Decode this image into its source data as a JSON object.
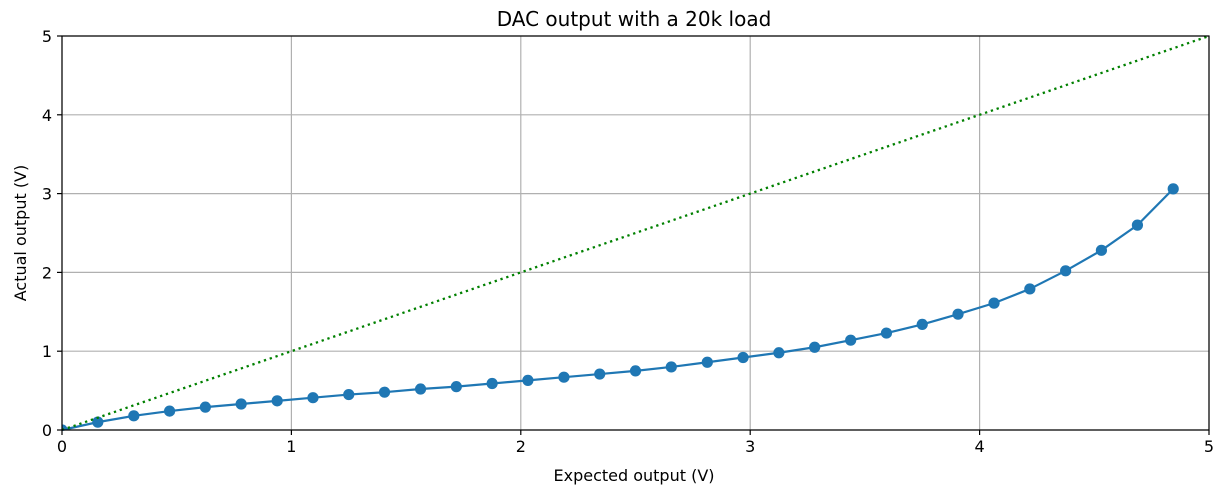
{
  "chart_data": {
    "type": "line",
    "title": "DAC output with a 20k load",
    "xlabel": "Expected output (V)",
    "ylabel": "Actual output (V)",
    "xlim": [
      0,
      5
    ],
    "ylim": [
      0,
      5
    ],
    "xticks": [
      "0",
      "1",
      "2",
      "3",
      "4",
      "5"
    ],
    "yticks": [
      "0",
      "1",
      "2",
      "3",
      "4",
      "5"
    ],
    "grid": true,
    "series": [
      {
        "color": "#1f77b4",
        "style": "solid-with-markers",
        "x": [
          0,
          0.156,
          0.313,
          0.469,
          0.625,
          0.781,
          0.938,
          1.094,
          1.25,
          1.406,
          1.563,
          1.719,
          1.875,
          2.031,
          2.188,
          2.344,
          2.5,
          2.656,
          2.813,
          2.969,
          3.125,
          3.281,
          3.438,
          3.594,
          3.75,
          3.906,
          4.063,
          4.219,
          4.375,
          4.531,
          4.688,
          4.844
        ],
        "y": [
          0,
          0.1,
          0.18,
          0.24,
          0.29,
          0.33,
          0.37,
          0.41,
          0.45,
          0.48,
          0.52,
          0.55,
          0.59,
          0.63,
          0.67,
          0.71,
          0.75,
          0.8,
          0.86,
          0.92,
          0.98,
          1.05,
          1.14,
          1.23,
          1.34,
          1.47,
          1.61,
          1.79,
          2.02,
          2.28,
          2.6,
          3.06
        ]
      },
      {
        "color": "#008000",
        "style": "dotted",
        "x": [
          0,
          5
        ],
        "y": [
          0,
          5
        ]
      }
    ]
  }
}
